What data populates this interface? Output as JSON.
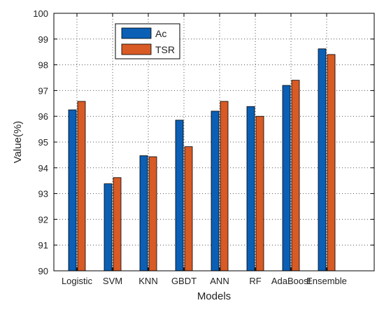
{
  "chart_data": {
    "type": "bar",
    "xlabel": "Models",
    "ylabel": "Value(%)",
    "ylim": [
      90,
      100
    ],
    "yticks": [
      "90",
      "91",
      "92",
      "93",
      "94",
      "95",
      "96",
      "97",
      "98",
      "99",
      "100"
    ],
    "grid": true,
    "legend_position": "top-left",
    "categories": [
      "Logistic",
      "SVM",
      "KNN",
      "GBDT",
      "ANN",
      "RF",
      "AdaBoost",
      "Ensemble"
    ],
    "series": [
      {
        "name": "Ac",
        "color": "#0b5fb5",
        "values": [
          96.25,
          93.38,
          94.47,
          95.85,
          96.2,
          96.38,
          97.2,
          98.62
        ]
      },
      {
        "name": "TSR",
        "color": "#d85a24",
        "values": [
          96.58,
          93.62,
          94.43,
          94.82,
          96.58,
          96.0,
          97.4,
          98.4
        ]
      }
    ]
  }
}
